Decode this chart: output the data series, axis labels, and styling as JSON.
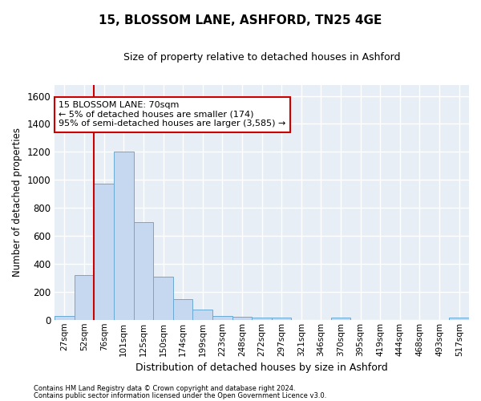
{
  "title_line1": "15, BLOSSOM LANE, ASHFORD, TN25 4GE",
  "title_line2": "Size of property relative to detached houses in Ashford",
  "xlabel": "Distribution of detached houses by size in Ashford",
  "ylabel": "Number of detached properties",
  "bar_color": "#c5d8f0",
  "bar_edge_color": "#6aaad4",
  "categories": [
    "27sqm",
    "52sqm",
    "76sqm",
    "101sqm",
    "125sqm",
    "150sqm",
    "174sqm",
    "199sqm",
    "223sqm",
    "248sqm",
    "272sqm",
    "297sqm",
    "321sqm",
    "346sqm",
    "370sqm",
    "395sqm",
    "419sqm",
    "444sqm",
    "468sqm",
    "493sqm",
    "517sqm"
  ],
  "values": [
    30,
    320,
    970,
    1200,
    700,
    310,
    150,
    75,
    30,
    20,
    15,
    15,
    0,
    0,
    15,
    0,
    0,
    0,
    0,
    0,
    15
  ],
  "ylim": [
    0,
    1680
  ],
  "yticks": [
    0,
    200,
    400,
    600,
    800,
    1000,
    1200,
    1400,
    1600
  ],
  "annotation_title": "15 BLOSSOM LANE: 70sqm",
  "annotation_line1": "← 5% of detached houses are smaller (174)",
  "annotation_line2": "95% of semi-detached houses are larger (3,585) →",
  "annotation_box_facecolor": "#ffffff",
  "annotation_border_color": "#cc0000",
  "vline_color": "#cc0000",
  "vline_x": 1.5,
  "footer1": "Contains HM Land Registry data © Crown copyright and database right 2024.",
  "footer2": "Contains public sector information licensed under the Open Government Licence v3.0.",
  "fig_facecolor": "#ffffff",
  "ax_facecolor": "#e8eef5",
  "grid_color": "#ffffff"
}
